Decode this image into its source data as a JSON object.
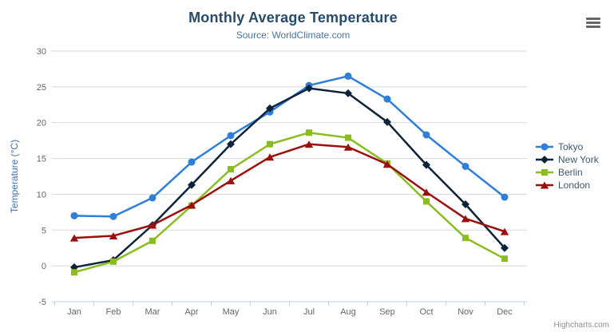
{
  "chart_data": {
    "type": "line",
    "title": "Monthly Average Temperature",
    "subtitle": "Source: WorldClimate.com",
    "xlabel": "",
    "ylabel": "Temperature (°C)",
    "ylim": [
      -5,
      30
    ],
    "ytick_step": 5,
    "grid": true,
    "legend_position": "right",
    "categories": [
      "Jan",
      "Feb",
      "Mar",
      "Apr",
      "May",
      "Jun",
      "Jul",
      "Aug",
      "Sep",
      "Oct",
      "Nov",
      "Dec"
    ],
    "series": [
      {
        "name": "Tokyo",
        "color": "#2f7ed8",
        "marker": "circle",
        "values": [
          7.0,
          6.9,
          9.5,
          14.5,
          18.2,
          21.5,
          25.2,
          26.5,
          23.3,
          18.3,
          13.9,
          9.6
        ]
      },
      {
        "name": "New York",
        "color": "#0d233a",
        "marker": "diamond",
        "values": [
          -0.2,
          0.8,
          5.7,
          11.3,
          17.0,
          22.0,
          24.8,
          24.1,
          20.1,
          14.1,
          8.6,
          2.5
        ]
      },
      {
        "name": "Berlin",
        "color": "#8bbc21",
        "marker": "square",
        "values": [
          -0.9,
          0.6,
          3.5,
          8.4,
          13.5,
          17.0,
          18.6,
          17.9,
          14.3,
          9.0,
          3.9,
          1.0
        ]
      },
      {
        "name": "London",
        "color": "#9c0f0f",
        "marker": "triangle",
        "values": [
          3.9,
          4.2,
          5.7,
          8.5,
          11.9,
          15.2,
          17.0,
          16.6,
          14.2,
          10.3,
          6.6,
          4.8
        ]
      }
    ]
  },
  "colors": {
    "grid_line": "#d8d8d8",
    "axis_line": "#c0d0e0",
    "axis_text": "#666666",
    "title_text": "#274b6d",
    "subtitle_text": "#4d759e",
    "y_axis_title_text": "#4572a7",
    "legend_text": "#3e576f"
  },
  "menu": {
    "icon": "hamburger-icon"
  },
  "credit": {
    "label": "Highcharts.com"
  }
}
